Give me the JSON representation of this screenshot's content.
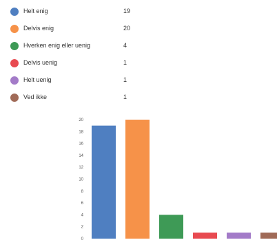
{
  "legend": [
    {
      "label": "Helt enig",
      "count": "19",
      "color": "#4f7fc1"
    },
    {
      "label": "Delvis enig",
      "count": "20",
      "color": "#f69249"
    },
    {
      "label": "Hverken enig eller uenig",
      "count": "4",
      "color": "#3e9a56"
    },
    {
      "label": "Delvis uenig",
      "count": "1",
      "color": "#e84a50"
    },
    {
      "label": "Helt uenig",
      "count": "1",
      "color": "#a37bc8"
    },
    {
      "label": "Ved ikke",
      "count": "1",
      "color": "#a06a57"
    }
  ],
  "chart_data": {
    "type": "bar",
    "categories": [
      "Helt enig",
      "Delvis enig",
      "Hverken enig eller uenig",
      "Delvis uenig",
      "Helt uenig",
      "Ved ikke"
    ],
    "values": [
      19,
      20,
      4,
      1,
      1,
      1
    ],
    "colors": [
      "#4f7fc1",
      "#f69249",
      "#3e9a56",
      "#e84a50",
      "#a37bc8",
      "#a06a57"
    ],
    "yticks": [
      "0",
      "2",
      "4",
      "6",
      "8",
      "10",
      "12",
      "14",
      "16",
      "18",
      "20"
    ],
    "ylim": [
      0,
      20
    ],
    "grid": false,
    "legend_position": "top"
  }
}
